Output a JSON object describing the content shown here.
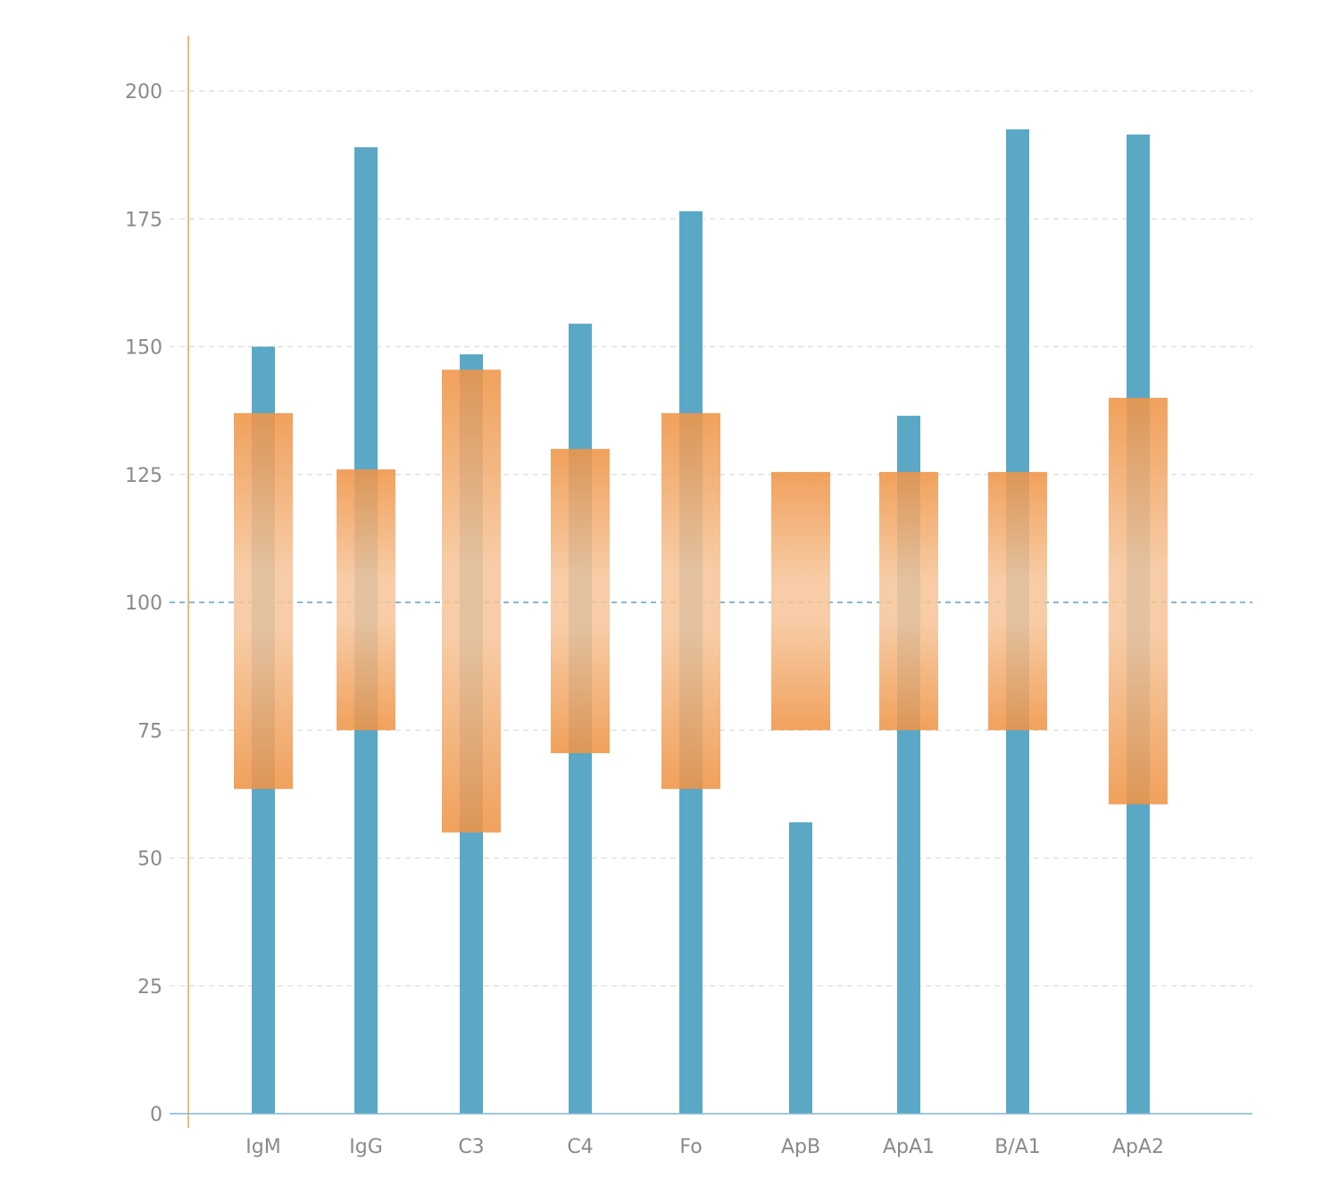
{
  "chart_data": {
    "type": "bar",
    "categories": [
      "IgM",
      "IgG",
      "C3",
      "C4",
      "Fo",
      "ApB",
      "ApA1",
      "B/A1",
      "ApA2"
    ],
    "y_ticks": [
      "0",
      "25",
      "50",
      "75",
      "100",
      "125",
      "150",
      "175",
      "200"
    ],
    "ylim": [
      0,
      200
    ],
    "reference_line": 100,
    "grid": true,
    "series": [
      {
        "kind": "value_bar",
        "values": [
          150,
          189,
          148.5,
          154.5,
          176.5,
          57,
          136.5,
          192.5,
          191.5
        ]
      },
      {
        "kind": "range_band",
        "low": [
          63.5,
          75,
          55,
          70.5,
          63.5,
          75,
          75,
          75,
          60.5
        ],
        "high": [
          137,
          126,
          145.5,
          130,
          137,
          125.5,
          125.5,
          125.5,
          140
        ]
      }
    ],
    "colors": {
      "value_bar": "#5ba7c6",
      "band_edge": "#ef9446",
      "band_center": "#f6c59a",
      "axis_left": "#f0a04b",
      "axis_bottom": "#7fb6d2",
      "grid": "#dcdcdc",
      "reference": "#5b9fcb"
    }
  }
}
